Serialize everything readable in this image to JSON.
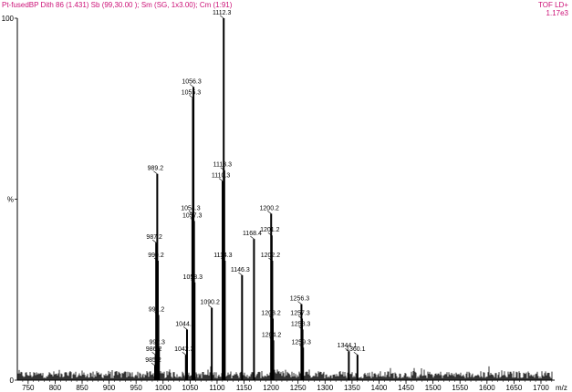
{
  "header": {
    "left": "Pt-fusedBP Dith 86 (1.431) Sb (99,30.00 ); Sm (SG, 1x3.00); Cm (1:91)",
    "right_line1": "TOF LD+",
    "right_line2": "1.17e3"
  },
  "colors": {
    "header_text": "#cc1177",
    "trace": "#000000",
    "axis": "#000000"
  },
  "chart_data": {
    "type": "line",
    "title": "",
    "xlabel": "m/z",
    "ylabel": "%",
    "xlim": [
      730,
      1722
    ],
    "ylim": [
      0,
      100
    ],
    "x_ticks": [
      750,
      800,
      850,
      900,
      950,
      1000,
      1050,
      1100,
      1150,
      1200,
      1250,
      1300,
      1350,
      1400,
      1450,
      1500,
      1550,
      1600,
      1650,
      1700
    ],
    "y_ticks": [
      {
        "value": 100,
        "label": "100"
      },
      {
        "value": 50,
        "label": "%"
      },
      {
        "value": 0,
        "label": "0"
      }
    ],
    "peaks": [
      {
        "x": 985.2,
        "y": 4.0,
        "label": "985.2"
      },
      {
        "x": 986.2,
        "y": 7.0,
        "label": "986.2"
      },
      {
        "x": 987.2,
        "y": 38.0,
        "label": "987.2"
      },
      {
        "x": 989.2,
        "y": 57.0,
        "label": "989.2"
      },
      {
        "x": 990.2,
        "y": 33.0,
        "label": "990.2"
      },
      {
        "x": 991.2,
        "y": 18.0,
        "label": "991.2"
      },
      {
        "x": 992.3,
        "y": 9.0,
        "label": "992.3"
      },
      {
        "x": 1042.3,
        "y": 7.0,
        "label": "1042.3"
      },
      {
        "x": 1044.3,
        "y": 14.0,
        "label": "1044.3"
      },
      {
        "x": 1054.3,
        "y": 46.0,
        "label": "1054.3"
      },
      {
        "x": 1055.3,
        "y": 78.0,
        "label": "1055.3"
      },
      {
        "x": 1056.3,
        "y": 81.0,
        "label": "1056.3"
      },
      {
        "x": 1057.3,
        "y": 44.0,
        "label": "1057.3"
      },
      {
        "x": 1058.3,
        "y": 27.0,
        "label": "1058.3"
      },
      {
        "x": 1090.2,
        "y": 20.0,
        "label": "1090.2"
      },
      {
        "x": 1110.3,
        "y": 55.0,
        "label": "1110.3"
      },
      {
        "x": 1112.3,
        "y": 100.0,
        "label": "1112.3"
      },
      {
        "x": 1113.3,
        "y": 58.0,
        "label": "1113.3"
      },
      {
        "x": 1114.3,
        "y": 33.0,
        "label": "1114.3"
      },
      {
        "x": 1146.3,
        "y": 29.0,
        "label": "1146.3"
      },
      {
        "x": 1168.4,
        "y": 39.0,
        "label": "1168.4"
      },
      {
        "x": 1200.2,
        "y": 46.0,
        "label": "1200.2"
      },
      {
        "x": 1201.2,
        "y": 40.0,
        "label": "1201.2"
      },
      {
        "x": 1202.2,
        "y": 33.0,
        "label": "1202.2"
      },
      {
        "x": 1203.2,
        "y": 17.0,
        "label": "1203.2"
      },
      {
        "x": 1204.2,
        "y": 11.0,
        "label": "1204.2"
      },
      {
        "x": 1256.3,
        "y": 21.0,
        "label": "1256.3"
      },
      {
        "x": 1257.3,
        "y": 17.0,
        "label": "1257.3"
      },
      {
        "x": 1258.3,
        "y": 14.0,
        "label": "1258.3"
      },
      {
        "x": 1259.3,
        "y": 9.0,
        "label": "1259.3"
      },
      {
        "x": 1344.1,
        "y": 8.0,
        "label": "1344.1"
      },
      {
        "x": 1360.1,
        "y": 7.0,
        "label": "1360.1"
      }
    ]
  }
}
